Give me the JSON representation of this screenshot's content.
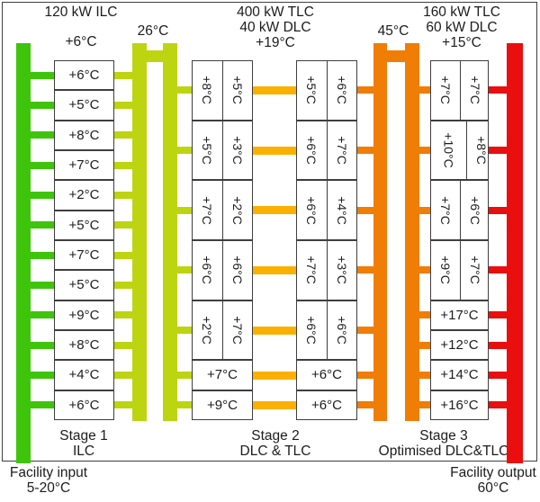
{
  "top_labels": {
    "stage1_power": "120 kW ILC",
    "stage1_delta": "+6°C",
    "loop1_temp": "26°C",
    "stage2_power_tlc": "400 kW TLC",
    "stage2_power_dlc": "40 kW DLC",
    "stage2_delta": "+19°C",
    "loop2_temp": "45°C",
    "stage3_power_tlc": "160 kW TLC",
    "stage3_power_dlc": "60 kW DLC",
    "stage3_delta": "+15°C"
  },
  "stages": {
    "stage1": {
      "name": "Stage 1",
      "type": "ILC",
      "rows": [
        [
          "+6°C"
        ],
        [
          "+5°C"
        ],
        [
          "+8°C"
        ],
        [
          "+7°C"
        ],
        [
          "+2°C"
        ],
        [
          "+5°C"
        ],
        [
          "+7°C"
        ],
        [
          "+5°C"
        ],
        [
          "+9°C"
        ],
        [
          "+8°C"
        ],
        [
          "+4°C"
        ],
        [
          "+6°C"
        ]
      ]
    },
    "stage2": {
      "name": "Stage 2",
      "type": "DLC & TLC",
      "left_rows": [
        [
          "+8°C",
          "+5°C"
        ],
        [
          "+5°C",
          "+3°C"
        ],
        [
          "+7°C",
          "+2°C"
        ],
        [
          "+6°C",
          "+6°C"
        ],
        [
          "+2°C",
          "+7°C"
        ],
        [
          "+7°C"
        ],
        [
          "+9°C"
        ]
      ],
      "right_rows": [
        [
          "+5°C",
          "+6°C"
        ],
        [
          "+6°C",
          "+7°C"
        ],
        [
          "+6°C",
          "+4°C"
        ],
        [
          "+7°C",
          "+3°C"
        ],
        [
          "+6°C",
          "+6°C"
        ],
        [
          "+6°C"
        ],
        [
          "+6°C"
        ]
      ]
    },
    "stage3": {
      "name": "Stage 3",
      "type": "Optimised DLC&TLC",
      "rows": [
        [
          "+7°C",
          "+7°C"
        ],
        [
          "+10°C",
          "+8°C"
        ],
        [
          "+7°C",
          "+6°C"
        ],
        [
          "+9°C",
          "+7°C"
        ],
        [
          "+17°C"
        ],
        [
          "+12°C"
        ],
        [
          "+14°C"
        ],
        [
          "+16°C"
        ]
      ]
    }
  },
  "facility": {
    "input_label": "Facility input",
    "input_temp": "5-20°C",
    "output_label": "Facility output",
    "output_temp": "60°C"
  },
  "colors": {
    "facility_input_green": "#3fc40c",
    "stage1_loop_lime": "#bdd411",
    "stage2_interlink_amber": "#fbb000",
    "stage2_loop_orange": "#f07d05",
    "facility_output_red": "#ea0e0e",
    "line": "#3e3e3e",
    "text": "#1c1c1c"
  }
}
